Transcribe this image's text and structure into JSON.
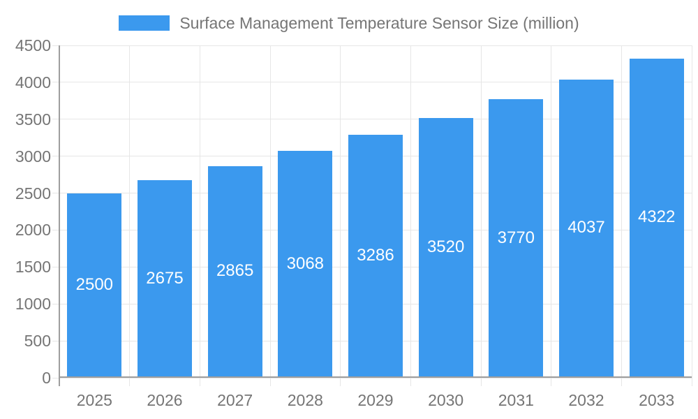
{
  "chart_data": {
    "type": "bar",
    "title": "Surface Management Temperature Sensor Size (million)",
    "categories": [
      "2025",
      "2026",
      "2027",
      "2028",
      "2029",
      "2030",
      "2031",
      "2032",
      "2033"
    ],
    "series": [
      {
        "name": "Surface Management Temperature Sensor Size (million)",
        "values": [
          2500,
          2675,
          2865,
          3068,
          3286,
          3520,
          3770,
          4037,
          4322
        ]
      }
    ],
    "xlabel": "",
    "ylabel": "",
    "ylim": [
      0,
      4500
    ],
    "ytick_step": 500,
    "ytick_labels": [
      "0",
      "500",
      "1000",
      "1500",
      "2000",
      "2500",
      "3000",
      "3500",
      "4000",
      "4500"
    ],
    "grid": true,
    "legend_position": "top",
    "value_label_position": "inside-center"
  },
  "colors": {
    "bar": "#3b99ee",
    "bar_label_text": "#ffffff",
    "axis_text": "#757575",
    "gridline": "#e6e6e6",
    "axis_line": "#9e9e9e",
    "background": "#ffffff"
  }
}
